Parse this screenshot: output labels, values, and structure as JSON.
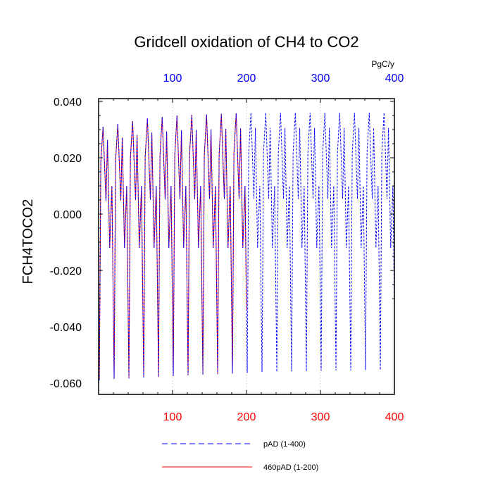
{
  "chart_data": {
    "type": "line",
    "title": "Gridcell oxidation of CH4 to CO2",
    "ylabel": "FCH4TOCO2",
    "top_axis_unit": "PgC/y",
    "xlim": [
      0,
      400
    ],
    "ylim": [
      -0.064,
      0.041
    ],
    "x_ticks": [
      100,
      200,
      300,
      400
    ],
    "x_tick_labels_bottom": [
      "100",
      "200",
      "300",
      "400"
    ],
    "x_tick_labels_top": [
      "100",
      "200",
      "300",
      "400"
    ],
    "bottom_tick_color": "#ff0000",
    "top_tick_color": "#0000ff",
    "y_ticks": [
      0.04,
      0.02,
      0.0,
      -0.02,
      -0.04,
      -0.06
    ],
    "y_tick_labels": [
      "0.040",
      "0.020",
      "0.000",
      "-0.020",
      "-0.040",
      "-0.060"
    ],
    "series": [
      {
        "name": "pAD (1-400)",
        "color": "#0000ff",
        "style": "dashed",
        "x_range": [
          1,
          400
        ],
        "cycle_years": 20,
        "peak_values": [
          0.031,
          0.032,
          0.033,
          0.034,
          0.0345,
          0.035,
          0.0352,
          0.0354,
          0.0356,
          0.0358,
          0.036,
          0.036,
          0.036,
          0.036,
          0.036,
          0.036,
          0.036,
          0.036,
          0.036,
          0.036
        ],
        "trough_values": [
          -0.059,
          -0.0585,
          -0.0583,
          -0.058,
          -0.0578,
          -0.0575,
          -0.0572,
          -0.057,
          -0.0568,
          -0.0566,
          -0.0563,
          -0.056,
          -0.056,
          -0.0558,
          -0.0558,
          -0.0556,
          -0.0555,
          -0.0555,
          -0.0553,
          -0.0553
        ]
      },
      {
        "name": "460pAD (1-200)",
        "color": "#ff0000",
        "style": "solid",
        "x_range": [
          1,
          200
        ],
        "cycle_years": 20,
        "peak_values": [
          0.031,
          0.032,
          0.033,
          0.034,
          0.0345,
          0.035,
          0.0352,
          0.0354,
          0.0356,
          0.0358
        ],
        "trough_values": [
          -0.059,
          -0.0585,
          -0.0583,
          -0.058,
          -0.0578,
          -0.0575,
          -0.0572,
          -0.057,
          -0.0568,
          -0.0566
        ]
      }
    ],
    "legend": [
      {
        "label": "pAD (1-400)",
        "color": "#0000ff",
        "style": "dashed"
      },
      {
        "label": "460pAD (1-200)",
        "color": "#ff0000",
        "style": "solid"
      }
    ],
    "grid": "vertical-dotted",
    "legend_position": "bottom"
  }
}
